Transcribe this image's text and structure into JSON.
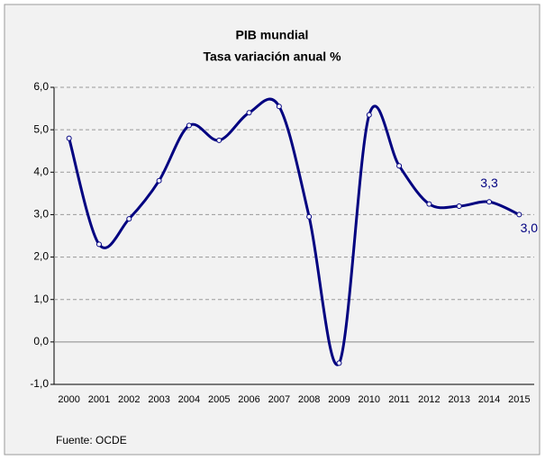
{
  "chart_data": {
    "type": "line",
    "title": "PIB mundial",
    "subtitle": "Tasa variación anual %",
    "categories": [
      "2000",
      "2001",
      "2002",
      "2003",
      "2004",
      "2005",
      "2006",
      "2007",
      "2008",
      "2009",
      "2010",
      "2011",
      "2012",
      "2013",
      "2014",
      "2015"
    ],
    "series": [
      {
        "name": "PIB mundial",
        "color": "#000080",
        "values": [
          4.8,
          2.3,
          2.9,
          3.8,
          5.1,
          4.75,
          5.4,
          5.55,
          2.95,
          -0.5,
          5.35,
          4.15,
          3.25,
          3.2,
          3.3,
          3.0
        ],
        "value_labels": [
          null,
          null,
          null,
          null,
          null,
          null,
          null,
          null,
          null,
          null,
          null,
          null,
          null,
          null,
          "3,3",
          "3,0"
        ]
      }
    ],
    "ylim": [
      -1,
      6
    ],
    "yticks": [
      {
        "value": -1,
        "label": "-1,0"
      },
      {
        "value": 0,
        "label": "0,0"
      },
      {
        "value": 1,
        "label": "1,0"
      },
      {
        "value": 2,
        "label": "2,0"
      },
      {
        "value": 3,
        "label": "3,0"
      },
      {
        "value": 4,
        "label": "4,0"
      },
      {
        "value": 5,
        "label": "5,0"
      },
      {
        "value": 6,
        "label": "6,0"
      }
    ],
    "grid": true,
    "source": "Fuente: OCDE"
  }
}
